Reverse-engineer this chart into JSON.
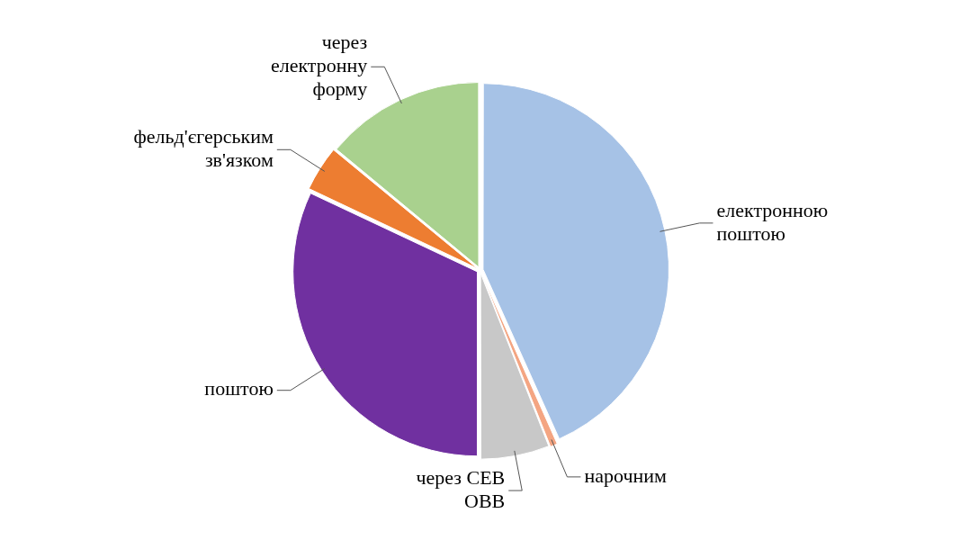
{
  "chart_data": {
    "type": "pie",
    "categories": [
      "електронною поштою",
      "нарочним",
      "через СЕВ ОВВ",
      "поштою",
      "фельд'єгерським зв'язком",
      "через електронну форму"
    ],
    "values": [
      43.3,
      0.7,
      6,
      32,
      4,
      14
    ],
    "colors": [
      "#a6c2e6",
      "#f4a582",
      "#c8c8c8",
      "#7030a0",
      "#ed7d31",
      "#a9d18e"
    ],
    "legend": false
  }
}
